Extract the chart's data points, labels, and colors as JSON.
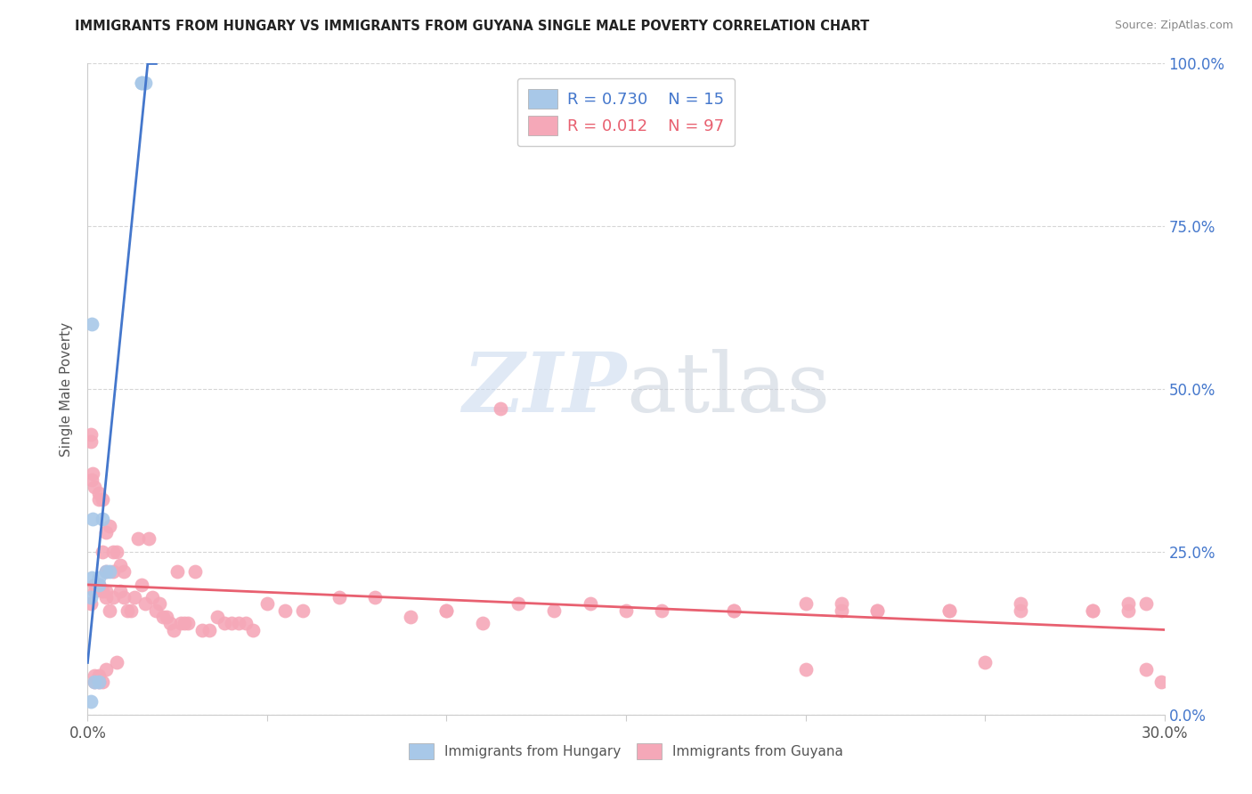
{
  "title": "IMMIGRANTS FROM HUNGARY VS IMMIGRANTS FROM GUYANA SINGLE MALE POVERTY CORRELATION CHART",
  "source": "Source: ZipAtlas.com",
  "ylabel": "Single Male Poverty",
  "xmin": 0.0,
  "xmax": 0.3,
  "ymin": 0.0,
  "ymax": 1.0,
  "xticks": [
    0.0,
    0.05,
    0.1,
    0.15,
    0.2,
    0.25,
    0.3
  ],
  "xtick_labels_show": [
    true,
    false,
    false,
    false,
    false,
    false,
    true
  ],
  "yticks_right": [
    0.0,
    0.25,
    0.5,
    0.75,
    1.0
  ],
  "hungary_color": "#a8c8e8",
  "guyana_color": "#f5a8b8",
  "hungary_line_color": "#4477cc",
  "guyana_line_color": "#e86070",
  "legend_hungary_label": "Immigrants from Hungary",
  "legend_guyana_label": "Immigrants from Guyana",
  "R_hungary": 0.73,
  "N_hungary": 15,
  "R_guyana": 0.012,
  "N_guyana": 97,
  "hungary_x": [
    0.0008,
    0.001,
    0.0012,
    0.0012,
    0.0015,
    0.002,
    0.003,
    0.003,
    0.003,
    0.004,
    0.005,
    0.006,
    0.015,
    0.015,
    0.016
  ],
  "hungary_y": [
    0.02,
    0.18,
    0.21,
    0.6,
    0.3,
    0.05,
    0.05,
    0.2,
    0.21,
    0.3,
    0.22,
    0.22,
    0.97,
    0.97,
    0.97
  ],
  "guyana_x": [
    0.001,
    0.001,
    0.001,
    0.0012,
    0.0015,
    0.002,
    0.002,
    0.002,
    0.002,
    0.002,
    0.003,
    0.003,
    0.003,
    0.003,
    0.003,
    0.004,
    0.004,
    0.004,
    0.004,
    0.005,
    0.005,
    0.005,
    0.005,
    0.005,
    0.006,
    0.006,
    0.007,
    0.007,
    0.007,
    0.008,
    0.008,
    0.009,
    0.009,
    0.01,
    0.01,
    0.011,
    0.012,
    0.013,
    0.014,
    0.015,
    0.016,
    0.017,
    0.018,
    0.019,
    0.02,
    0.021,
    0.022,
    0.023,
    0.024,
    0.025,
    0.026,
    0.027,
    0.028,
    0.03,
    0.032,
    0.034,
    0.036,
    0.038,
    0.04,
    0.042,
    0.044,
    0.046,
    0.05,
    0.055,
    0.06,
    0.07,
    0.08,
    0.09,
    0.1,
    0.11,
    0.115,
    0.12,
    0.13,
    0.14,
    0.16,
    0.18,
    0.2,
    0.21,
    0.22,
    0.24,
    0.26,
    0.28,
    0.29,
    0.295,
    0.1,
    0.15,
    0.18,
    0.2,
    0.21,
    0.22,
    0.24,
    0.25,
    0.26,
    0.28,
    0.29,
    0.295,
    0.299
  ],
  "guyana_y": [
    0.43,
    0.42,
    0.17,
    0.36,
    0.37,
    0.19,
    0.2,
    0.35,
    0.05,
    0.06,
    0.33,
    0.34,
    0.2,
    0.05,
    0.06,
    0.33,
    0.25,
    0.19,
    0.05,
    0.28,
    0.22,
    0.19,
    0.18,
    0.07,
    0.29,
    0.16,
    0.25,
    0.22,
    0.18,
    0.25,
    0.08,
    0.23,
    0.19,
    0.22,
    0.18,
    0.16,
    0.16,
    0.18,
    0.27,
    0.2,
    0.17,
    0.27,
    0.18,
    0.16,
    0.17,
    0.15,
    0.15,
    0.14,
    0.13,
    0.22,
    0.14,
    0.14,
    0.14,
    0.22,
    0.13,
    0.13,
    0.15,
    0.14,
    0.14,
    0.14,
    0.14,
    0.13,
    0.17,
    0.16,
    0.16,
    0.18,
    0.18,
    0.15,
    0.16,
    0.14,
    0.47,
    0.17,
    0.16,
    0.17,
    0.16,
    0.16,
    0.17,
    0.17,
    0.16,
    0.16,
    0.16,
    0.16,
    0.17,
    0.17,
    0.16,
    0.16,
    0.16,
    0.07,
    0.16,
    0.16,
    0.16,
    0.08,
    0.17,
    0.16,
    0.16,
    0.07,
    0.05
  ],
  "watermark_zip": "ZIP",
  "watermark_atlas": "atlas",
  "background_color": "#ffffff",
  "grid_color": "#cccccc",
  "title_color": "#222222",
  "source_color": "#888888",
  "axis_label_color": "#555555",
  "right_axis_color": "#4477cc"
}
